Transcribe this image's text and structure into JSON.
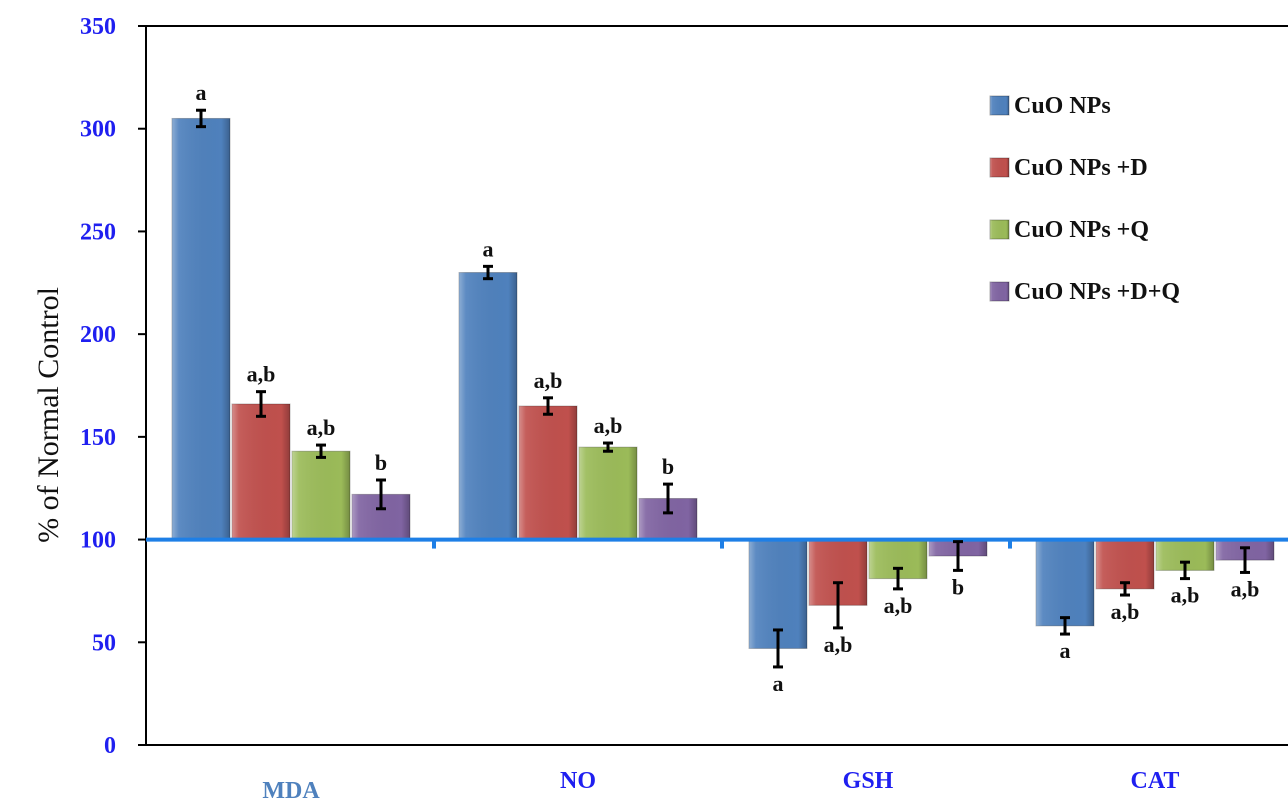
{
  "chart_data": {
    "type": "bar",
    "ylabel": "% of Normal Control",
    "xlabel": "",
    "title": "",
    "ylim": [
      0,
      350
    ],
    "yticks": [
      "0",
      "50",
      "100",
      "150",
      "200",
      "250",
      "300",
      "350"
    ],
    "baseline": 100,
    "categories": [
      "MDA",
      "NO",
      "GSH",
      "CAT"
    ],
    "legend_position": "top-right",
    "series": [
      {
        "name": "CuO NPs",
        "color": "#4f81bd",
        "values": [
          305,
          230,
          47,
          58
        ],
        "errors": [
          4,
          3,
          9,
          4
        ],
        "labels": [
          "a",
          "a",
          "a",
          "a"
        ]
      },
      {
        "name": "CuO NPs +D",
        "color": "#c0504d",
        "values": [
          166,
          165,
          68,
          76
        ],
        "errors": [
          6,
          4,
          11,
          3
        ],
        "labels": [
          "a,b",
          "a,b",
          "a,b",
          "a,b"
        ]
      },
      {
        "name": "CuO NPs +Q",
        "color": "#9bbb59",
        "values": [
          143,
          145,
          81,
          85
        ],
        "errors": [
          3,
          2,
          5,
          4
        ],
        "labels": [
          "a,b",
          "a,b",
          "a,b",
          "a,b"
        ]
      },
      {
        "name": "CuO NPs +D+Q",
        "color": "#8064a2",
        "values": [
          122,
          120,
          92,
          90
        ],
        "errors": [
          7,
          7,
          7,
          6
        ],
        "labels": [
          "b",
          "b",
          "b",
          "a,b"
        ]
      }
    ]
  }
}
